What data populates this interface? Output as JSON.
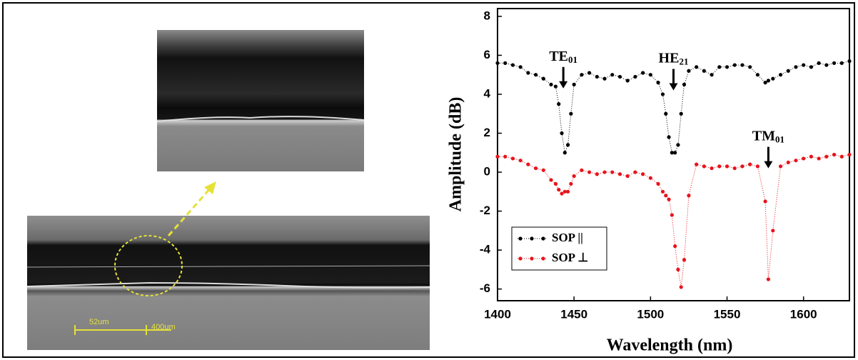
{
  "chart_data": {
    "type": "scatter",
    "x_label": "Wavelength (nm)",
    "y_label": "Amplitude (dB)",
    "x": [
      1400,
      1405,
      1410,
      1415,
      1420,
      1425,
      1430,
      1435,
      1438,
      1440,
      1442,
      1444,
      1446,
      1448,
      1450,
      1455,
      1460,
      1465,
      1470,
      1475,
      1480,
      1485,
      1490,
      1495,
      1500,
      1505,
      1508,
      1510,
      1512,
      1514,
      1516,
      1518,
      1520,
      1522,
      1525,
      1530,
      1535,
      1540,
      1545,
      1550,
      1555,
      1560,
      1565,
      1570,
      1575,
      1577,
      1580,
      1585,
      1590,
      1595,
      1600,
      1605,
      1610,
      1615,
      1620,
      1625,
      1630
    ],
    "series": [
      {
        "name": "SOP ||",
        "color": "#000000",
        "values": [
          5.6,
          5.6,
          5.5,
          5.4,
          5.1,
          5.0,
          4.8,
          4.5,
          4.4,
          3.5,
          2.0,
          1.0,
          1.4,
          3.0,
          4.5,
          5.0,
          5.1,
          4.9,
          4.8,
          5.0,
          4.9,
          4.7,
          4.9,
          5.1,
          5.0,
          4.6,
          4.0,
          3.0,
          1.8,
          1.0,
          1.0,
          1.4,
          3.0,
          4.5,
          5.2,
          5.4,
          5.2,
          5.0,
          5.4,
          5.4,
          5.5,
          5.5,
          5.4,
          5.0,
          4.6,
          4.7,
          4.8,
          5.0,
          5.2,
          5.4,
          5.5,
          5.4,
          5.6,
          5.5,
          5.6,
          5.6,
          5.7
        ]
      },
      {
        "name": "SOP ⊥",
        "color": "#e8131b",
        "values": [
          0.8,
          0.8,
          0.7,
          0.6,
          0.4,
          0.2,
          0.1,
          -0.4,
          -0.6,
          -0.9,
          -1.1,
          -1.0,
          -1.0,
          -0.6,
          -0.2,
          0.1,
          0.0,
          -0.1,
          0.0,
          0.0,
          -0.1,
          -0.2,
          0.0,
          -0.1,
          -0.3,
          -0.6,
          -1.0,
          -1.2,
          -1.4,
          -2.2,
          -3.8,
          -5.0,
          -5.9,
          -4.5,
          -1.2,
          0.4,
          0.3,
          0.2,
          0.3,
          0.3,
          0.2,
          0.3,
          0.4,
          0.3,
          -1.5,
          -5.5,
          -3.0,
          0.3,
          0.5,
          0.6,
          0.7,
          0.8,
          0.7,
          0.8,
          0.9,
          0.8,
          0.9
        ]
      }
    ],
    "annotations": [
      {
        "text": "TE",
        "subscript": "01",
        "x": 1443,
        "y": 4.3
      },
      {
        "text": "HE",
        "subscript": "21",
        "x": 1515,
        "y": 4.2
      },
      {
        "text": "TM",
        "subscript": "01",
        "x": 1577,
        "y": 0.2
      }
    ],
    "xlim": [
      1400,
      1630
    ],
    "ylim": [
      -6.6,
      8.4
    ],
    "xticks": [
      1400,
      1450,
      1500,
      1550,
      1600
    ],
    "yticks": [
      -6,
      -4,
      -2,
      0,
      2,
      4,
      6,
      8
    ],
    "legend": "lower-left"
  },
  "micrographs": {
    "scale_labels": [
      "52um",
      "400um"
    ]
  }
}
